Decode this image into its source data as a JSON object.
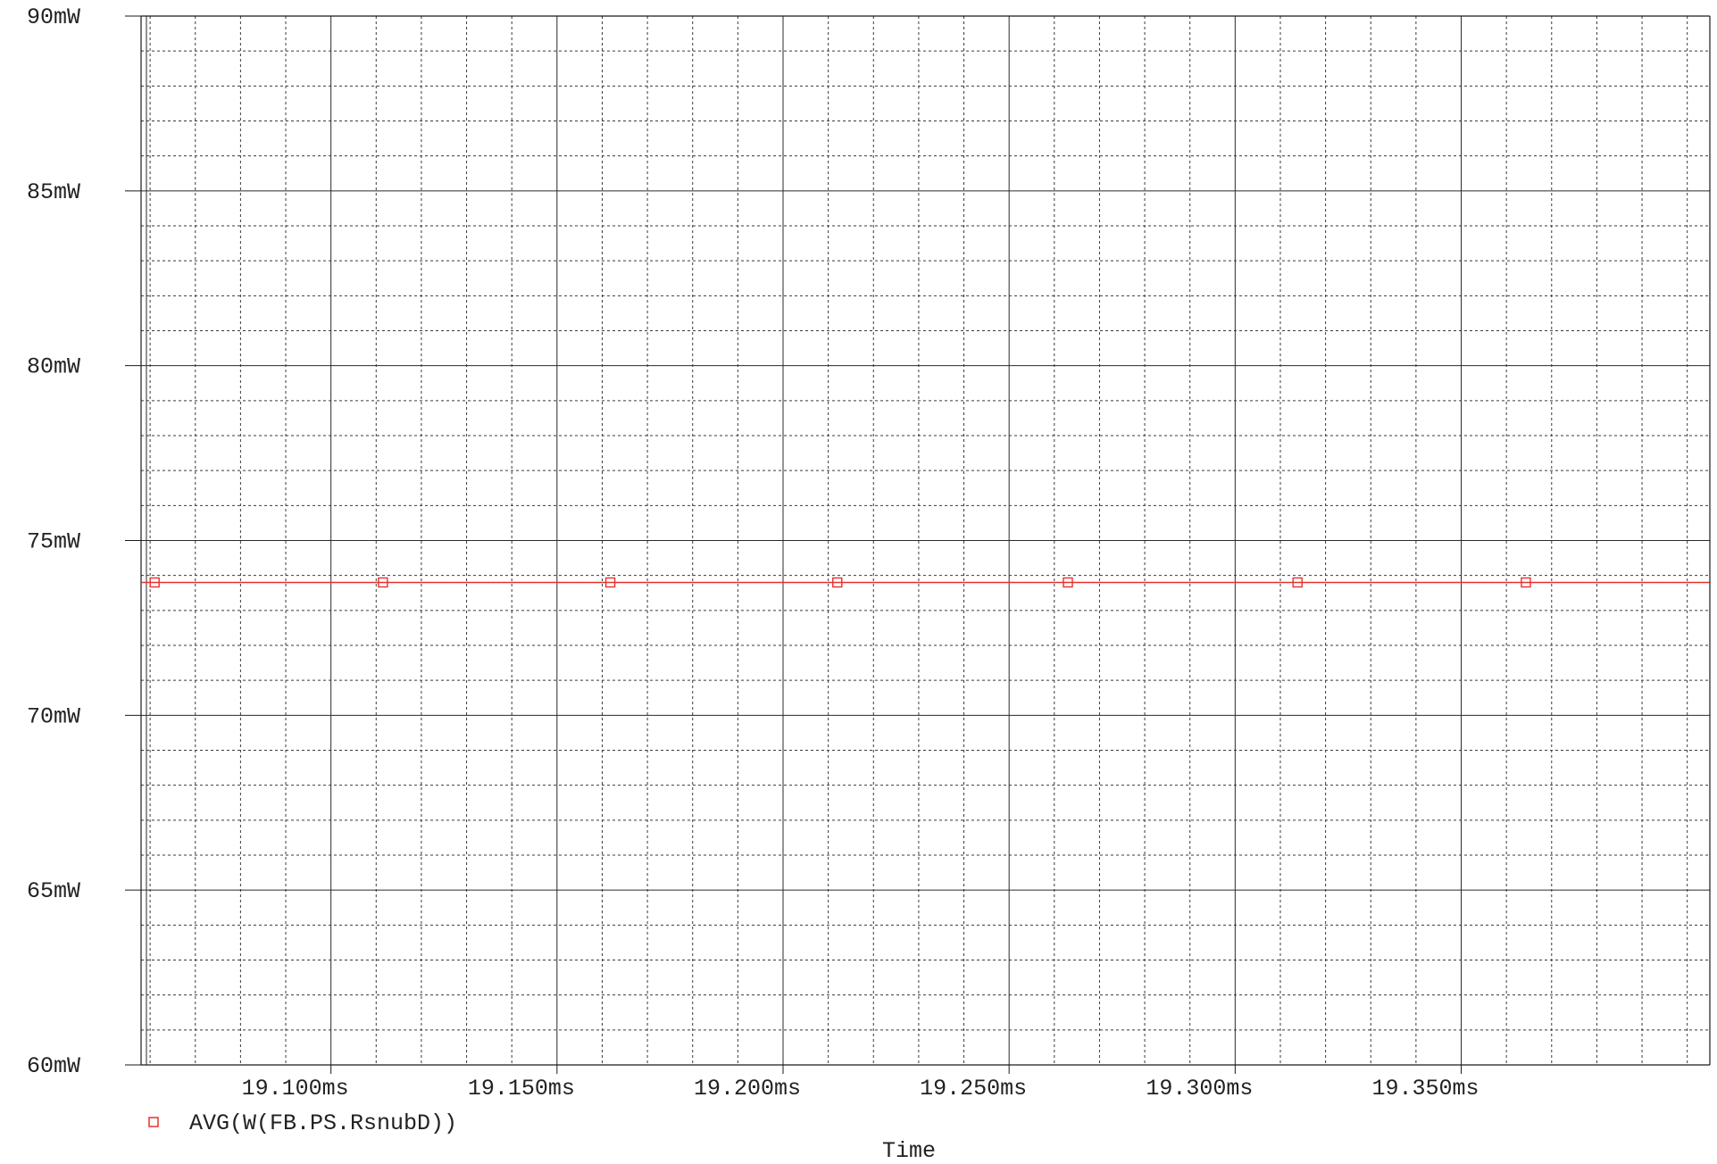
{
  "chart_data": {
    "type": "line",
    "title": "",
    "xlabel": "Time",
    "ylabel": "",
    "xlim": [
      19.058,
      19.405
    ],
    "ylim": [
      60,
      90
    ],
    "x_ticks": [
      19.1,
      19.15,
      19.2,
      19.25,
      19.3,
      19.35
    ],
    "x_tick_labels": [
      "19.100ms",
      "19.150ms",
      "19.200ms",
      "19.250ms",
      "19.300ms",
      "19.350ms"
    ],
    "y_ticks": [
      60,
      65,
      70,
      75,
      80,
      85,
      90
    ],
    "y_tick_labels": [
      "60mW",
      "65mW",
      "70mW",
      "75mW",
      "80mW",
      "85mW",
      "90mW"
    ],
    "grid": true,
    "legend_position": "bottom-left",
    "series": [
      {
        "name": "AVG(W(FB.PS.RsnubD))",
        "color": "#e8302c",
        "marker": "square",
        "x": [
          19.058,
          19.4049
        ],
        "y": [
          73.8,
          73.8
        ],
        "marker_x": [
          19.061,
          19.1115,
          19.1618,
          19.212,
          19.263,
          19.3138,
          19.3643
        ]
      }
    ]
  }
}
